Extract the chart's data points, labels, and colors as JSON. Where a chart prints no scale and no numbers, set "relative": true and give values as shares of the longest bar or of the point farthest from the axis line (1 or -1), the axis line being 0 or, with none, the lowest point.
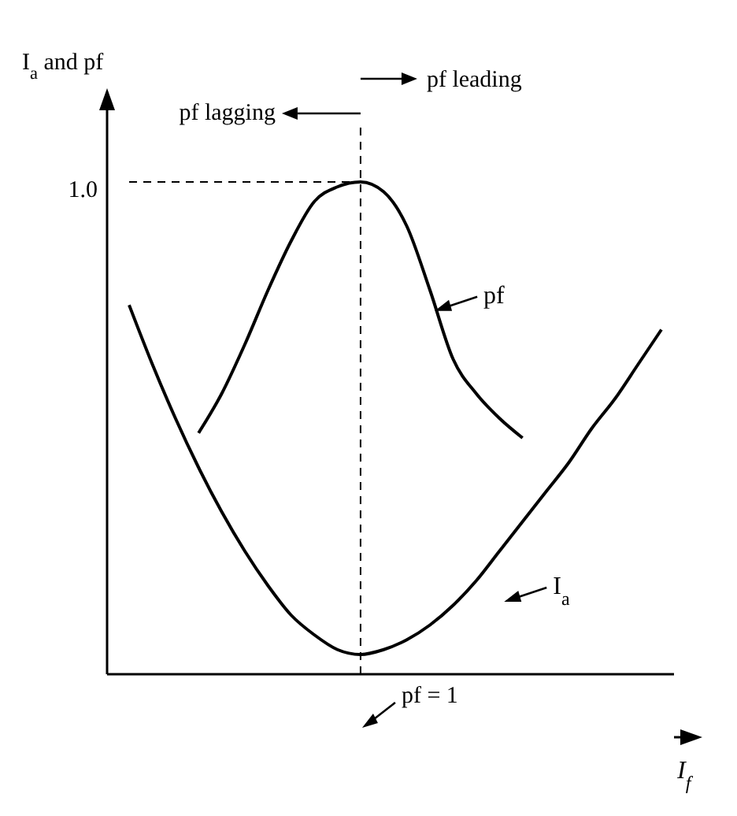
{
  "chart_data": {
    "type": "line",
    "xlabel": "I$_{f}$",
    "ylabel": "I$_{a}$ and pf",
    "relative": true,
    "legend": "right",
    "marker": "none",
    "line_style": "solid",
    "categories": [
      null,
      null,
      null,
      null,
      null,
      null,
      null,
      null,
      null,
      null,
      null,
      null,
      null,
      null,
      null,
      null,
      null,
      null,
      null,
      null,
      null,
      null,
      null,
      null
    ],
    "series": [
      {
        "name": "pf",
        "color": "#000000",
        "values": [
          null,
          null,
          null,
          0.49,
          0.57,
          0.67,
          0.78,
          0.88,
          0.96,
          0.99,
          1.0,
          0.98,
          0.91,
          0.78,
          0.64,
          0.57,
          0.52,
          0.48,
          null,
          null,
          null,
          null,
          null,
          null
        ]
      },
      {
        "name": "I$_{a}$",
        "color": "#000000",
        "values": [
          0.75,
          0.63,
          0.52,
          0.42,
          0.33,
          0.25,
          0.18,
          0.12,
          0.08,
          0.05,
          0.04,
          0.05,
          0.07,
          0.1,
          0.14,
          0.19,
          0.25,
          0.31,
          0.37,
          0.43,
          0.5,
          0.56,
          0.63,
          0.7
        ]
      }
    ],
    "ref_lines": [
      {
        "axis": "y",
        "value": 1,
        "label": "1.0",
        "line_style": "dashed",
        "color": "#000000"
      }
    ],
    "annotations": [
      "pf lagging",
      "pf leading",
      "pf = 1"
    ]
  }
}
